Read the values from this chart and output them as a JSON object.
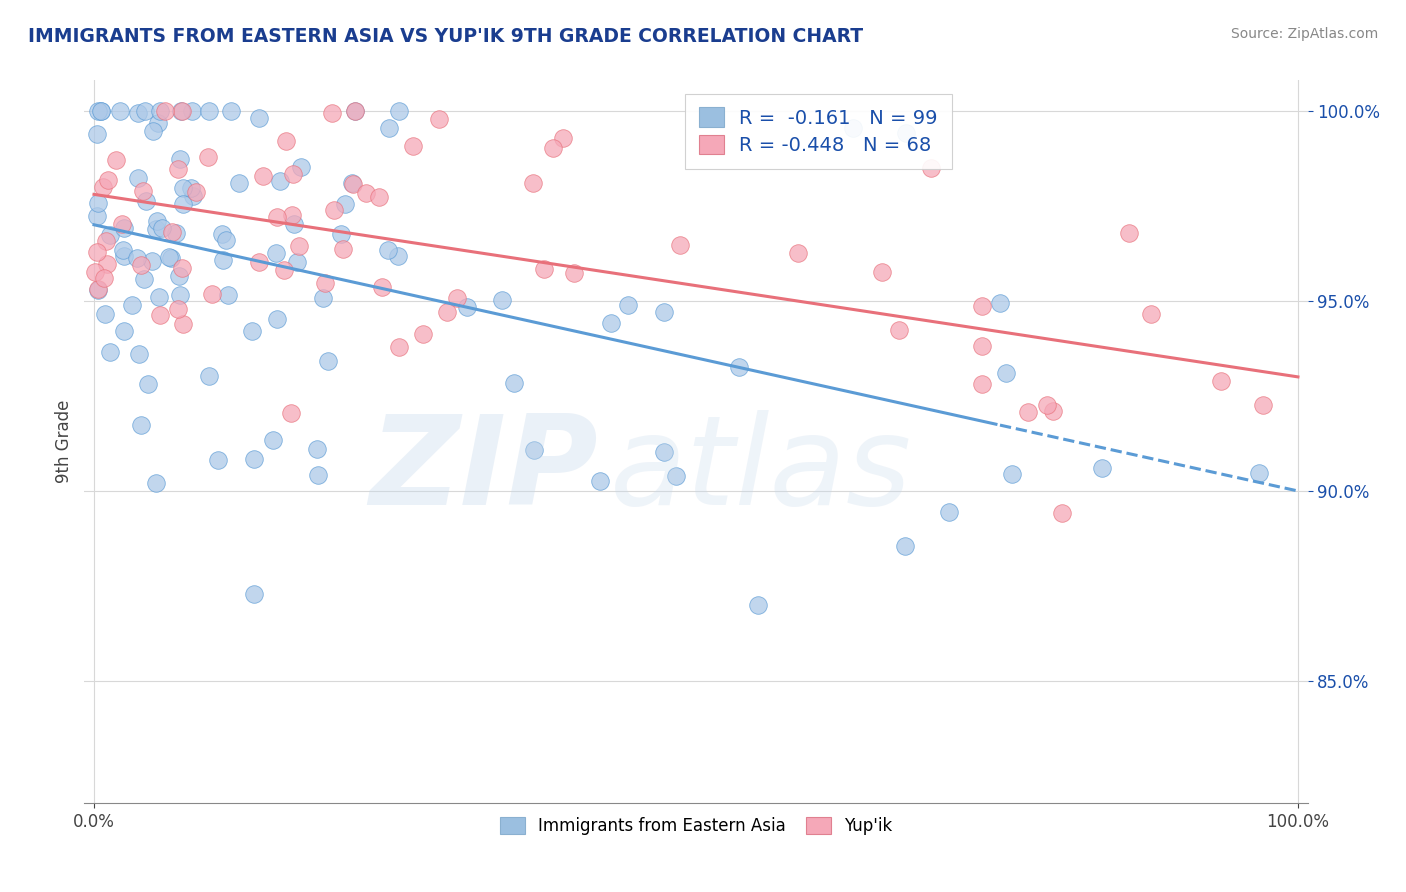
{
  "title": "IMMIGRANTS FROM EASTERN ASIA VS YUP'IK 9TH GRADE CORRELATION CHART",
  "source": "Source: ZipAtlas.com",
  "ylabel": "9th Grade",
  "y_min": 0.818,
  "y_max": 1.008,
  "x_min": -0.008,
  "x_max": 1.008,
  "blue_R": -0.161,
  "blue_N": 99,
  "pink_R": -0.448,
  "pink_N": 68,
  "blue_color": "#adc9e8",
  "pink_color": "#f5a8b8",
  "blue_line_color": "#5b9bd5",
  "pink_line_color": "#e8707a",
  "legend_blue_color": "#9bbfe0",
  "legend_pink_color": "#f5a8b8",
  "watermark_zip_color": "#c5d8eb",
  "watermark_atlas_color": "#c5d8eb",
  "background_color": "#ffffff",
  "grid_color": "#d8d8d8",
  "title_color": "#1a3d8f",
  "stats_color": "#1a4faa",
  "blue_line_start_y": 0.97,
  "blue_line_end_y": 0.9,
  "pink_line_start_y": 0.978,
  "pink_line_end_y": 0.93,
  "blue_dash_split": 0.75,
  "yticks": [
    0.85,
    0.9,
    0.95,
    1.0
  ],
  "ytick_labels": [
    "85.0%",
    "90.0%",
    "95.0%",
    "100.0%"
  ],
  "xtick_labels": [
    "0.0%",
    "100.0%"
  ]
}
